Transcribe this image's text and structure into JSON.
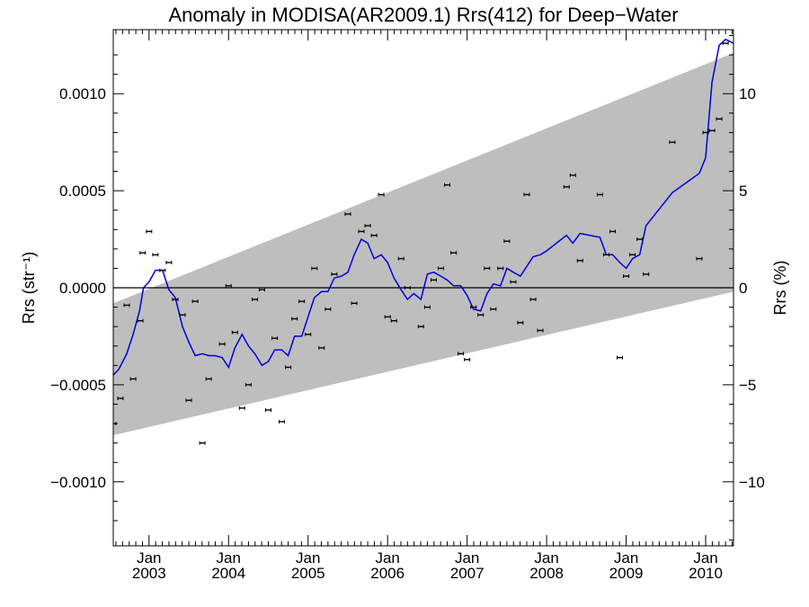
{
  "chart_data": {
    "type": "scatter",
    "title": "Anomaly in MODISA(AR2009.1) Rrs(412) for Deep−Water",
    "ylabel": "Rrs (str⁻¹)",
    "ylabel_right": "Rrs (%)",
    "xlim": [
      2002.55,
      2010.35
    ],
    "ylim": [
      -0.00133,
      0.00133
    ],
    "ylim_right": [
      -13.3,
      13.3
    ],
    "grid": false,
    "x_ticks": [
      {
        "line1": "Jan",
        "line2": "2003",
        "x": 2003.0
      },
      {
        "line1": "Jan",
        "line2": "2004",
        "x": 2004.0
      },
      {
        "line1": "Jan",
        "line2": "2005",
        "x": 2005.0
      },
      {
        "line1": "Jan",
        "line2": "2006",
        "x": 2006.0
      },
      {
        "line1": "Jan",
        "line2": "2007",
        "x": 2007.0
      },
      {
        "line1": "Jan",
        "line2": "2008",
        "x": 2008.0
      },
      {
        "line1": "Jan",
        "line2": "2009",
        "x": 2009.0
      },
      {
        "line1": "Jan",
        "line2": "2010",
        "x": 2010.0
      }
    ],
    "y_ticks_left": [
      {
        "label": "0.0010",
        "value": 0.001
      },
      {
        "label": "0.0005",
        "value": 0.0005
      },
      {
        "label": "0.0000",
        "value": 0.0
      },
      {
        "label": "−0.0005",
        "value": -0.0005
      },
      {
        "label": "−0.0010",
        "value": -0.001
      }
    ],
    "y_ticks_right": [
      {
        "label": "10",
        "value": 10
      },
      {
        "label": "5",
        "value": 5
      },
      {
        "label": "0",
        "value": 0
      },
      {
        "label": "−5",
        "value": -5
      },
      {
        "label": "−10",
        "value": -10
      }
    ],
    "envelope": {
      "upper": [
        [
          2002.55,
          -8e-05
        ],
        [
          2010.35,
          0.00121
        ]
      ],
      "lower": [
        [
          2002.55,
          -0.00076
        ],
        [
          2010.35,
          -2e-05
        ]
      ],
      "color": "#bebebe"
    },
    "zero_line": 0.0,
    "colors": {
      "line": "#0000dd",
      "points": "#000000",
      "band": "#bebebe"
    },
    "series": [
      {
        "type": "scatter",
        "points": [
          [
            2002.55,
            -0.0007
          ],
          [
            2002.64,
            -0.00057
          ],
          [
            2002.72,
            -9e-05
          ],
          [
            2002.8,
            -0.00047
          ],
          [
            2002.89,
            -0.00017
          ],
          [
            2002.92,
            0.00018
          ],
          [
            2003.0,
            0.00029
          ],
          [
            2003.08,
            0.00017
          ],
          [
            2003.17,
            9e-05
          ],
          [
            2003.25,
            0.00013
          ],
          [
            2003.33,
            -6e-05
          ],
          [
            2003.42,
            -0.00014
          ],
          [
            2003.5,
            -0.00058
          ],
          [
            2003.58,
            -7e-05
          ],
          [
            2003.67,
            -0.0008
          ],
          [
            2003.75,
            -0.00047
          ],
          [
            2003.92,
            -0.00029
          ],
          [
            2004.0,
            1e-05
          ],
          [
            2004.08,
            -0.00023
          ],
          [
            2004.17,
            -0.00062
          ],
          [
            2004.25,
            -0.0005
          ],
          [
            2004.33,
            -6e-05
          ],
          [
            2004.42,
            -1e-05
          ],
          [
            2004.5,
            -0.00063
          ],
          [
            2004.58,
            -0.00026
          ],
          [
            2004.67,
            -0.00069
          ],
          [
            2004.75,
            -0.00041
          ],
          [
            2004.83,
            -0.00016
          ],
          [
            2004.92,
            -7e-05
          ],
          [
            2005.0,
            -0.00024
          ],
          [
            2005.08,
            0.0001
          ],
          [
            2005.17,
            -0.00031
          ],
          [
            2005.25,
            -0.00011
          ],
          [
            2005.33,
            7e-05
          ],
          [
            2005.5,
            0.00038
          ],
          [
            2005.58,
            -8e-05
          ],
          [
            2005.67,
            0.00029
          ],
          [
            2005.75,
            0.00032
          ],
          [
            2005.83,
            0.00027
          ],
          [
            2005.92,
            0.00048
          ],
          [
            2006.0,
            -0.00015
          ],
          [
            2006.08,
            -0.00017
          ],
          [
            2006.17,
            0.00015
          ],
          [
            2006.25,
            0.0
          ],
          [
            2006.42,
            -0.0002
          ],
          [
            2006.5,
            -0.0001
          ],
          [
            2006.58,
            4e-05
          ],
          [
            2006.67,
            0.0001
          ],
          [
            2006.75,
            0.00053
          ],
          [
            2006.83,
            0.00018
          ],
          [
            2006.92,
            -0.00034
          ],
          [
            2007.0,
            -0.00037
          ],
          [
            2007.08,
            -0.0001
          ],
          [
            2007.17,
            -0.00014
          ],
          [
            2007.25,
            0.0001
          ],
          [
            2007.33,
            -0.00011
          ],
          [
            2007.42,
            0.0001
          ],
          [
            2007.5,
            0.00024
          ],
          [
            2007.58,
            3e-05
          ],
          [
            2007.67,
            -0.00018
          ],
          [
            2007.75,
            0.00048
          ],
          [
            2007.83,
            -6e-05
          ],
          [
            2007.92,
            -0.00022
          ],
          [
            2008.25,
            0.00052
          ],
          [
            2008.33,
            0.00058
          ],
          [
            2008.42,
            0.00014
          ],
          [
            2008.67,
            0.00048
          ],
          [
            2008.75,
            0.00017
          ],
          [
            2008.83,
            0.00029
          ],
          [
            2008.92,
            -0.00036
          ],
          [
            2009.0,
            6e-05
          ],
          [
            2009.08,
            0.00017
          ],
          [
            2009.17,
            0.00025
          ],
          [
            2009.25,
            7e-05
          ],
          [
            2009.58,
            0.00075
          ],
          [
            2009.92,
            0.00015
          ],
          [
            2010.0,
            0.0008
          ],
          [
            2010.08,
            0.00081
          ],
          [
            2010.17,
            0.00087
          ],
          [
            2010.25,
            0.00126
          ]
        ]
      },
      {
        "type": "line",
        "points": [
          [
            2002.55,
            -0.00045
          ],
          [
            2002.62,
            -0.00042
          ],
          [
            2002.72,
            -0.00034
          ],
          [
            2002.8,
            -0.00024
          ],
          [
            2002.88,
            -0.00012
          ],
          [
            2002.93,
            0.0
          ],
          [
            2003.0,
            3e-05
          ],
          [
            2003.08,
            9e-05
          ],
          [
            2003.17,
            9e-05
          ],
          [
            2003.25,
            -1e-05
          ],
          [
            2003.33,
            -5e-05
          ],
          [
            2003.42,
            -0.0002
          ],
          [
            2003.5,
            -0.00028
          ],
          [
            2003.58,
            -0.00035
          ],
          [
            2003.67,
            -0.00034
          ],
          [
            2003.75,
            -0.00035
          ],
          [
            2003.83,
            -0.00035
          ],
          [
            2003.92,
            -0.00036
          ],
          [
            2004.0,
            -0.00041
          ],
          [
            2004.08,
            -0.00031
          ],
          [
            2004.17,
            -0.00024
          ],
          [
            2004.25,
            -0.0003
          ],
          [
            2004.33,
            -0.00034
          ],
          [
            2004.42,
            -0.0004
          ],
          [
            2004.5,
            -0.00038
          ],
          [
            2004.58,
            -0.00032
          ],
          [
            2004.67,
            -0.00032
          ],
          [
            2004.75,
            -0.00035
          ],
          [
            2004.83,
            -0.00025
          ],
          [
            2004.92,
            -0.00025
          ],
          [
            2005.0,
            -0.00015
          ],
          [
            2005.08,
            -5e-05
          ],
          [
            2005.17,
            -2e-05
          ],
          [
            2005.25,
            -2e-05
          ],
          [
            2005.33,
            5e-05
          ],
          [
            2005.42,
            6e-05
          ],
          [
            2005.5,
            8e-05
          ],
          [
            2005.58,
            0.00017
          ],
          [
            2005.67,
            0.00025
          ],
          [
            2005.75,
            0.00023
          ],
          [
            2005.83,
            0.00015
          ],
          [
            2005.92,
            0.00017
          ],
          [
            2006.0,
            0.00013
          ],
          [
            2006.08,
            5e-05
          ],
          [
            2006.17,
            -1e-05
          ],
          [
            2006.25,
            -6e-05
          ],
          [
            2006.33,
            -3e-05
          ],
          [
            2006.42,
            -6e-05
          ],
          [
            2006.5,
            7e-05
          ],
          [
            2006.58,
            8e-05
          ],
          [
            2006.67,
            6e-05
          ],
          [
            2006.75,
            4e-05
          ],
          [
            2006.83,
            1e-05
          ],
          [
            2006.92,
            1e-05
          ],
          [
            2007.0,
            -4e-05
          ],
          [
            2007.08,
            -0.00011
          ],
          [
            2007.17,
            -0.00012
          ],
          [
            2007.25,
            -3e-05
          ],
          [
            2007.33,
            2e-05
          ],
          [
            2007.42,
            1e-05
          ],
          [
            2007.5,
            0.0001
          ],
          [
            2007.58,
            8e-05
          ],
          [
            2007.67,
            6e-05
          ],
          [
            2007.75,
            0.00011
          ],
          [
            2007.83,
            0.00016
          ],
          [
            2007.92,
            0.00017
          ],
          [
            2008.0,
            0.00019
          ],
          [
            2008.25,
            0.00027
          ],
          [
            2008.33,
            0.00023
          ],
          [
            2008.42,
            0.00028
          ],
          [
            2008.67,
            0.00026
          ],
          [
            2008.75,
            0.00017
          ],
          [
            2008.83,
            0.00017
          ],
          [
            2008.92,
            0.00013
          ],
          [
            2009.0,
            0.0001
          ],
          [
            2009.08,
            0.00015
          ],
          [
            2009.17,
            0.00017
          ],
          [
            2009.25,
            0.00032
          ],
          [
            2009.58,
            0.00049
          ],
          [
            2009.92,
            0.00059
          ],
          [
            2010.0,
            0.00067
          ],
          [
            2010.08,
            0.00106
          ],
          [
            2010.17,
            0.00125
          ],
          [
            2010.25,
            0.00128
          ],
          [
            2010.35,
            0.00126
          ]
        ]
      }
    ]
  }
}
